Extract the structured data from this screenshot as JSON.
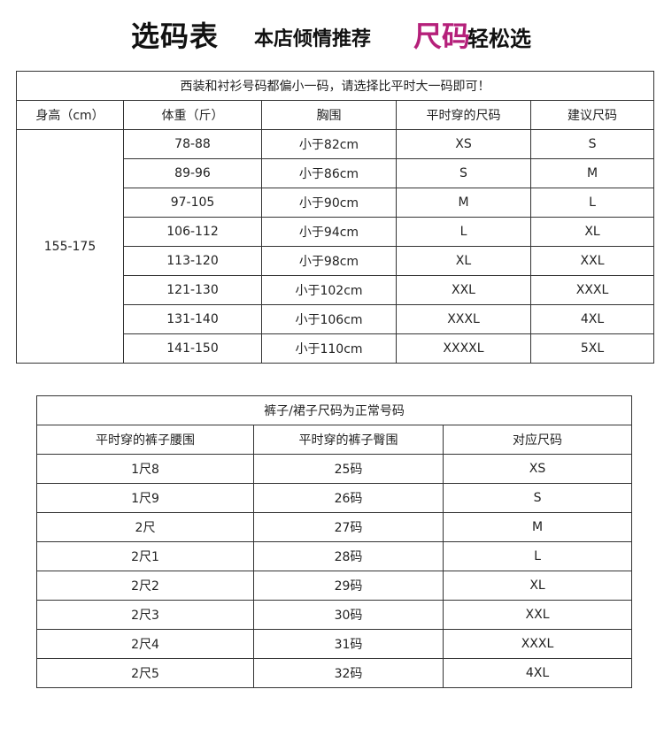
{
  "header": {
    "title": "选码表",
    "subtitle": "本店倾情推荐",
    "highlight": "尺码",
    "tail": "轻松选",
    "highlight_color": "#b5207a"
  },
  "tops": {
    "note": "西装和衬衫号码都偏小一码，请选择比平时大一码即可！",
    "columns": [
      "身高（cm）",
      "体重（斤）",
      "胸围",
      "平时穿的尺码",
      "建议尺码"
    ],
    "height": "155-175",
    "rows": [
      [
        "78-88",
        "小于82cm",
        "XS",
        "S"
      ],
      [
        "89-96",
        "小于86cm",
        "S",
        "M"
      ],
      [
        "97-105",
        "小于90cm",
        "M",
        "L"
      ],
      [
        "106-112",
        "小于94cm",
        "L",
        "XL"
      ],
      [
        "113-120",
        "小于98cm",
        "XL",
        "XXL"
      ],
      [
        "121-130",
        "小于102cm",
        "XXL",
        "XXXL"
      ],
      [
        "131-140",
        "小于106cm",
        "XXXL",
        "4XL"
      ],
      [
        "141-150",
        "小于110cm",
        "XXXXL",
        "5XL"
      ]
    ]
  },
  "bottoms": {
    "note": "裤子/裙子尺码为正常号码",
    "columns": [
      "平时穿的裤子腰围",
      "平时穿的裤子臀围",
      "对应尺码"
    ],
    "rows": [
      [
        "1尺8",
        "25码",
        "XS"
      ],
      [
        "1尺9",
        "26码",
        "S"
      ],
      [
        "2尺",
        "27码",
        "M"
      ],
      [
        "2尺1",
        "28码",
        "L"
      ],
      [
        "2尺2",
        "29码",
        "XL"
      ],
      [
        "2尺3",
        "30码",
        "XXL"
      ],
      [
        "2尺4",
        "31码",
        "XXXL"
      ],
      [
        "2尺5",
        "32码",
        "4XL"
      ]
    ]
  }
}
